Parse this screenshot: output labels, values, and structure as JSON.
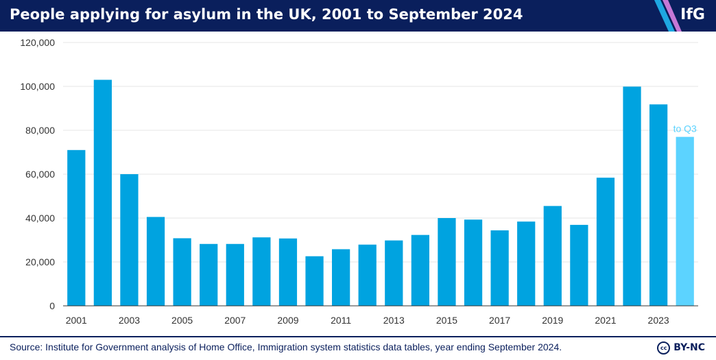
{
  "header": {
    "title": "People applying for asylum in the UK, 2001 to September 2024",
    "logo_text": "IfG"
  },
  "footer": {
    "source": "Source: Institute for Government analysis of Home Office, Immigration system statistics data tables, year ending September 2024.",
    "license_icon": "cc",
    "license_text": "BY-NC"
  },
  "colors": {
    "header_bg": "#0a1f5c",
    "bar": "#00a3e0",
    "bar_partial": "#5cd3ff",
    "annotation": "#5cd3ff",
    "axis_text": "#333333",
    "grid": "#e6e6e6"
  },
  "chart_data": {
    "type": "bar",
    "title": "People applying for asylum in the UK, 2001 to September 2024",
    "x": [
      2001,
      2002,
      2003,
      2004,
      2005,
      2006,
      2007,
      2008,
      2009,
      2010,
      2011,
      2012,
      2013,
      2014,
      2015,
      2016,
      2017,
      2018,
      2019,
      2020,
      2021,
      2022,
      2023,
      2024
    ],
    "values": [
      71000,
      103000,
      60000,
      40500,
      30800,
      28200,
      28200,
      31200,
      30700,
      22600,
      25800,
      27900,
      29800,
      32300,
      40000,
      39300,
      34400,
      38400,
      45500,
      36900,
      58400,
      99900,
      91800,
      77000
    ],
    "x_tick_labels": [
      "2001",
      "2003",
      "2005",
      "2007",
      "2009",
      "2011",
      "2013",
      "2015",
      "2017",
      "2019",
      "2021",
      "2023"
    ],
    "y_tick_labels": [
      "0",
      "20,000",
      "40,000",
      "60,000",
      "80,000",
      "100,000",
      "120,000"
    ],
    "ylim": [
      0,
      120000
    ],
    "y_ticks": [
      0,
      20000,
      40000,
      60000,
      80000,
      100000,
      120000
    ],
    "partial_year": 2024,
    "annotations": [
      {
        "x": 2024,
        "text": "to Q3"
      }
    ],
    "grid": true,
    "legend": "none",
    "xlabel": "",
    "ylabel": ""
  }
}
